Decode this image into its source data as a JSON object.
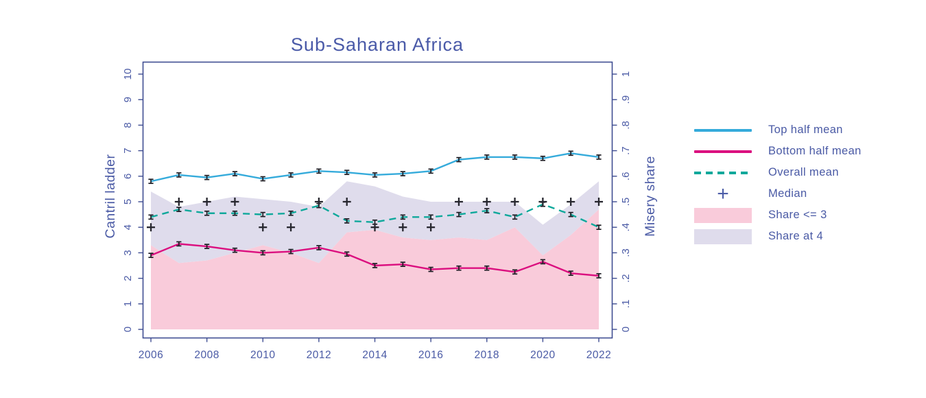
{
  "title": "Sub-Saharan Africa",
  "colors": {
    "text": "#4A5AA5",
    "title": "#4A5AA8",
    "frame": "#3F4D92",
    "top_half_mean": "#35ABDB",
    "bottom_half_mean": "#DB0F7F",
    "overall_mean": "#0FA89B",
    "median_marker": "#26262E",
    "error_bar": "#1B1B22",
    "share_le_3_fill": "#F9CBDA",
    "share_at_4_fill": "#DFDCEC",
    "legend_plus": "#4D5EA8"
  },
  "chart_data": {
    "type": "line",
    "title": "Sub-Saharan Africa",
    "x": [
      2006,
      2007,
      2008,
      2009,
      2010,
      2011,
      2012,
      2013,
      2014,
      2015,
      2016,
      2017,
      2018,
      2019,
      2020,
      2021,
      2022
    ],
    "x_tick_labels": [
      "2006",
      "2008",
      "2010",
      "2012",
      "2014",
      "2016",
      "2018",
      "2020",
      "2022"
    ],
    "x_ticks": [
      2006,
      2008,
      2010,
      2012,
      2014,
      2016,
      2018,
      2020,
      2022
    ],
    "left_axis": {
      "label": "Cantril ladder",
      "range": [
        0,
        10
      ],
      "ticks": [
        0,
        1,
        2,
        3,
        4,
        5,
        6,
        7,
        8,
        9,
        10
      ],
      "tick_labels": [
        "0",
        "1",
        "2",
        "3",
        "4",
        "5",
        "6",
        "7",
        "8",
        "9",
        "10"
      ]
    },
    "right_axis": {
      "label": "Misery share",
      "range": [
        0,
        1
      ],
      "ticks": [
        0,
        0.1,
        0.2,
        0.3,
        0.4,
        0.5,
        0.6,
        0.7,
        0.8,
        0.9,
        1
      ],
      "tick_labels": [
        "0",
        ".1",
        ".2",
        ".3",
        ".4",
        ".5",
        ".6",
        ".7",
        ".8",
        ".9",
        "1"
      ]
    },
    "grid": false,
    "legend_position": "right",
    "series": [
      {
        "name": "Top half mean",
        "type": "line",
        "axis": "left",
        "color": "#35ABDB",
        "error_bar": 0.08,
        "values": [
          5.8,
          6.05,
          5.95,
          6.1,
          5.9,
          6.05,
          6.2,
          6.15,
          6.05,
          6.1,
          6.2,
          6.65,
          6.75,
          6.75,
          6.7,
          6.9,
          6.75
        ]
      },
      {
        "name": "Bottom half mean",
        "type": "line",
        "axis": "left",
        "color": "#DB0F7F",
        "error_bar": 0.08,
        "values": [
          2.9,
          3.35,
          3.25,
          3.1,
          3.0,
          3.05,
          3.2,
          2.95,
          2.5,
          2.55,
          2.35,
          2.4,
          2.4,
          2.25,
          2.65,
          2.2,
          2.1
        ]
      },
      {
        "name": "Overall mean",
        "type": "line",
        "axis": "left",
        "color": "#0FA89B",
        "dashed": true,
        "error_bar": 0.08,
        "values": [
          4.4,
          4.7,
          4.55,
          4.55,
          4.5,
          4.55,
          4.85,
          4.25,
          4.2,
          4.4,
          4.4,
          4.5,
          4.65,
          4.4,
          4.9,
          4.5,
          4.0
        ]
      },
      {
        "name": "Median",
        "type": "marker",
        "marker": "plus",
        "axis": "left",
        "color": "#26262E",
        "values": [
          4,
          5,
          5,
          5,
          4,
          4,
          5,
          5,
          4,
          4,
          4,
          5,
          5,
          5,
          5,
          5,
          5
        ]
      },
      {
        "name": "Share <= 3",
        "type": "area",
        "axis": "right",
        "color": "#F9CBDA",
        "values": [
          0.33,
          0.26,
          0.27,
          0.3,
          0.33,
          0.3,
          0.26,
          0.38,
          0.39,
          0.36,
          0.35,
          0.36,
          0.35,
          0.4,
          0.29,
          0.37,
          0.47
        ]
      },
      {
        "name": "Share at 4",
        "type": "area-stacked",
        "axis": "right",
        "color": "#DFDCEC",
        "stacked_on": "Share <= 3",
        "values": [
          0.21,
          0.22,
          0.23,
          0.22,
          0.18,
          0.2,
          0.22,
          0.2,
          0.17,
          0.16,
          0.15,
          0.14,
          0.15,
          0.1,
          0.12,
          0.12,
          0.11
        ]
      }
    ],
    "legend": {
      "items": [
        {
          "label": "Top half mean",
          "swatch": "line-cyan"
        },
        {
          "label": "Bottom half mean",
          "swatch": "line-magenta"
        },
        {
          "label": "Overall mean",
          "swatch": "dash-teal"
        },
        {
          "label": "Median",
          "swatch": "plus",
          "glyph": "+"
        },
        {
          "label": "Share <= 3",
          "swatch": "rect-pink"
        },
        {
          "label": "Share at 4",
          "swatch": "rect-lavender"
        }
      ]
    }
  }
}
